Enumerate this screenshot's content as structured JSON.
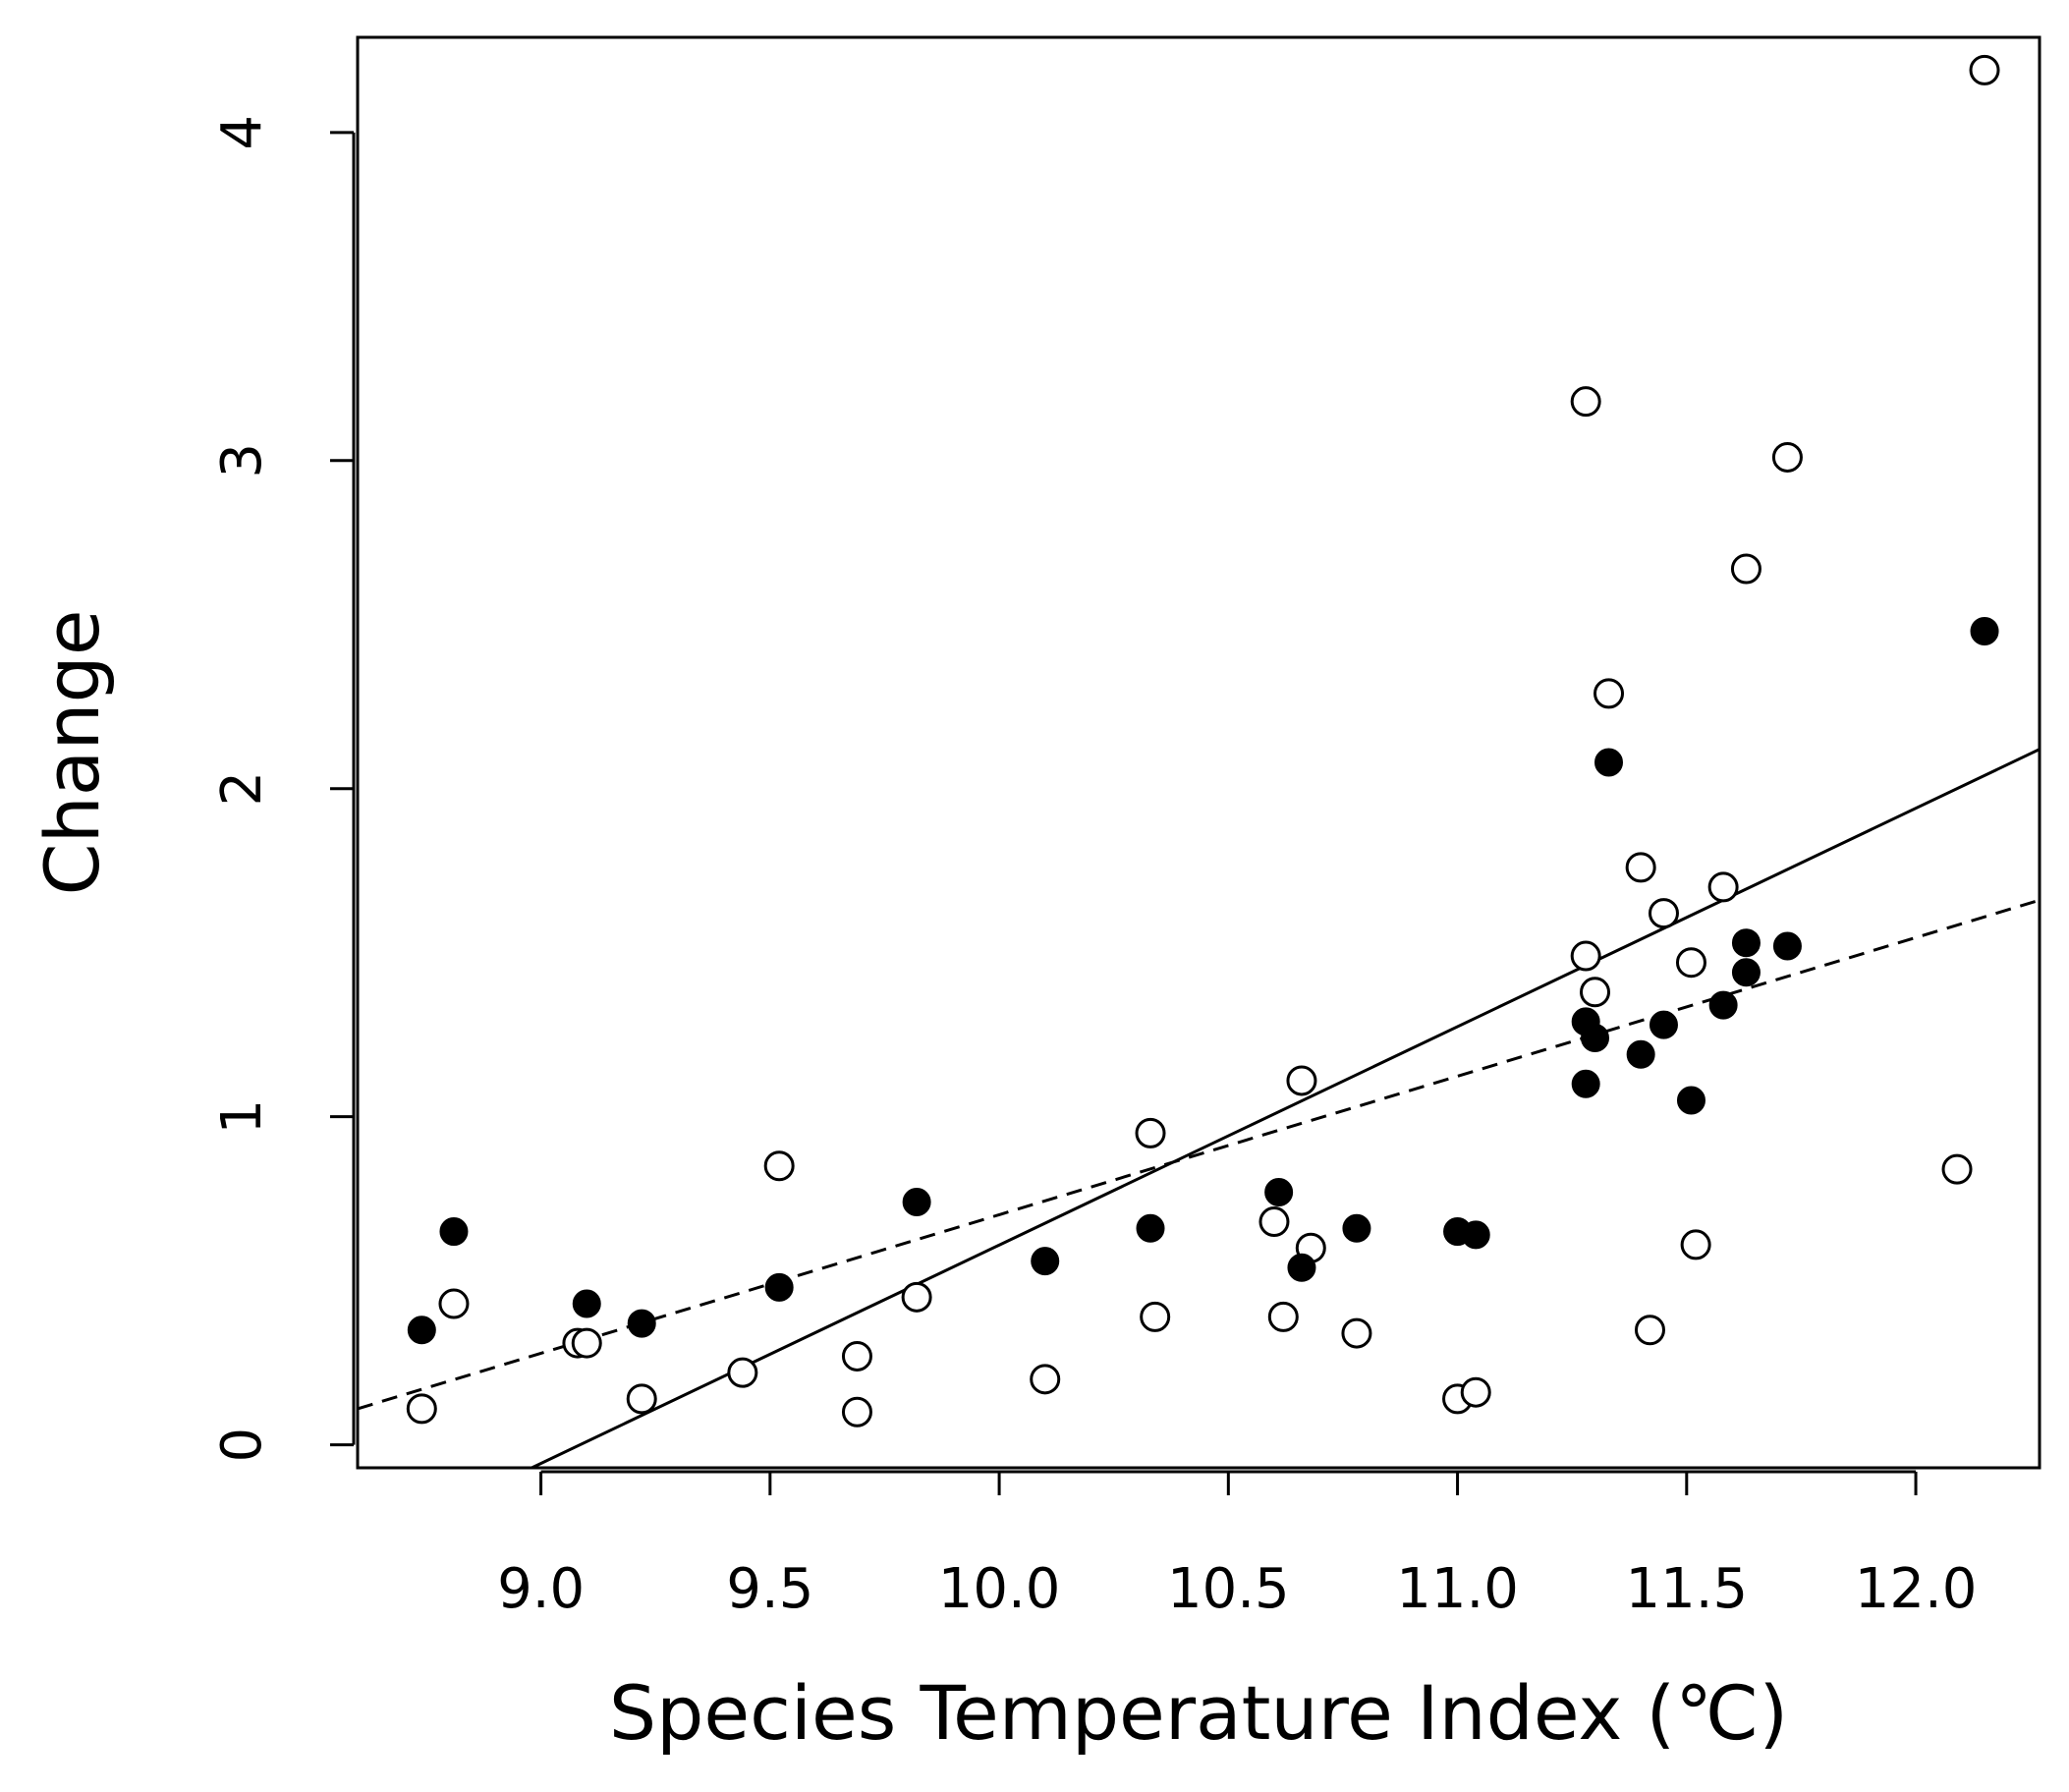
{
  "chart_data": {
    "type": "scatter",
    "title": "",
    "xlabel": "Species Temperature Index (℃)",
    "ylabel": "Change",
    "xlim": [
      8.6,
      12.27
    ],
    "ylim": [
      -0.07,
      4.29
    ],
    "x_ticks": [
      9.0,
      9.5,
      10.0,
      10.5,
      11.0,
      11.5,
      12.0
    ],
    "x_tick_labels": [
      "9.0",
      "9.5",
      "10.0",
      "10.5",
      "11.0",
      "11.5",
      "12.0"
    ],
    "y_ticks": [
      0,
      1,
      2,
      3,
      4
    ],
    "y_tick_labels": [
      "0",
      "1",
      "2",
      "3",
      "4"
    ],
    "grid": false,
    "legend": "none",
    "series": [
      {
        "name": "open circles",
        "marker": "open-circle",
        "points": [
          [
            8.74,
            0.11
          ],
          [
            8.81,
            0.43
          ],
          [
            9.08,
            0.31
          ],
          [
            9.1,
            0.31
          ],
          [
            9.22,
            0.14
          ],
          [
            9.44,
            0.22
          ],
          [
            9.52,
            0.85
          ],
          [
            9.69,
            0.1
          ],
          [
            9.69,
            0.27
          ],
          [
            9.82,
            0.45
          ],
          [
            10.1,
            0.2
          ],
          [
            10.33,
            0.95
          ],
          [
            10.34,
            0.39
          ],
          [
            10.6,
            0.68
          ],
          [
            10.62,
            0.39
          ],
          [
            10.66,
            1.11
          ],
          [
            10.68,
            0.6
          ],
          [
            10.78,
            0.34
          ],
          [
            11.0,
            0.14
          ],
          [
            11.04,
            0.16
          ],
          [
            11.28,
            3.18
          ],
          [
            11.28,
            1.49
          ],
          [
            11.3,
            1.38
          ],
          [
            11.33,
            2.29
          ],
          [
            11.4,
            1.76
          ],
          [
            11.42,
            0.35
          ],
          [
            11.45,
            1.62
          ],
          [
            11.51,
            1.47
          ],
          [
            11.52,
            0.61
          ],
          [
            11.58,
            1.7
          ],
          [
            11.63,
            2.67
          ],
          [
            11.72,
            3.01
          ],
          [
            12.09,
            0.84
          ],
          [
            12.15,
            4.19
          ]
        ]
      },
      {
        "name": "filled circles",
        "marker": "filled-circle",
        "points": [
          [
            8.74,
            0.35
          ],
          [
            8.81,
            0.65
          ],
          [
            9.1,
            0.43
          ],
          [
            9.22,
            0.37
          ],
          [
            9.52,
            0.48
          ],
          [
            9.82,
            0.74
          ],
          [
            10.1,
            0.56
          ],
          [
            10.33,
            0.66
          ],
          [
            10.61,
            0.77
          ],
          [
            10.66,
            0.54
          ],
          [
            10.78,
            0.66
          ],
          [
            11.0,
            0.65
          ],
          [
            11.04,
            0.64
          ],
          [
            11.28,
            1.1
          ],
          [
            11.28,
            1.29
          ],
          [
            11.3,
            1.24
          ],
          [
            11.33,
            2.08
          ],
          [
            11.4,
            1.19
          ],
          [
            11.45,
            1.28
          ],
          [
            11.51,
            1.05
          ],
          [
            11.58,
            1.34
          ],
          [
            11.63,
            1.44
          ],
          [
            11.63,
            1.53
          ],
          [
            11.72,
            1.52
          ],
          [
            12.15,
            2.48
          ]
        ]
      }
    ],
    "lines": [
      {
        "name": "solid regression line",
        "style": "solid",
        "x": [
          8.98,
          12.27
        ],
        "y": [
          -0.07,
          2.12
        ]
      },
      {
        "name": "dashed regression line",
        "style": "dashed",
        "x": [
          8.6,
          12.27
        ],
        "y": [
          0.11,
          1.66
        ]
      }
    ]
  }
}
